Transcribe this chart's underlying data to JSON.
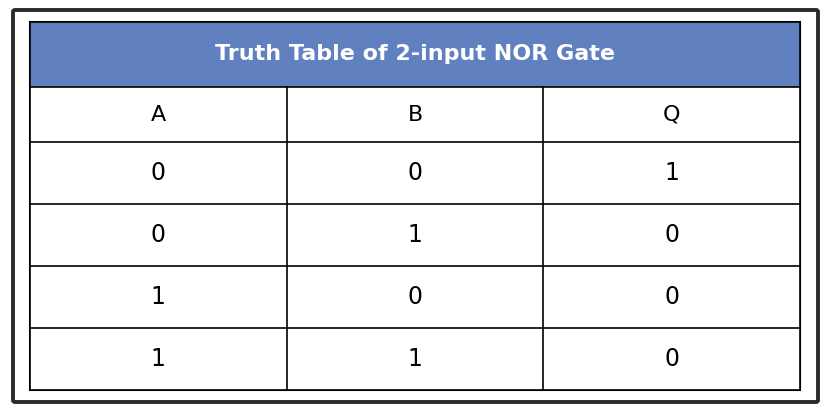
{
  "title": "Truth Table of 2-input NOR Gate",
  "header": [
    "A",
    "B",
    "Q"
  ],
  "rows": [
    [
      "0",
      "0",
      "1"
    ],
    [
      "0",
      "1",
      "0"
    ],
    [
      "1",
      "0",
      "0"
    ],
    [
      "1",
      "1",
      "0"
    ]
  ],
  "header_bg_color": "#6080C0",
  "header_text_color": "#FFFFFF",
  "cell_bg_color": "#FFFFFF",
  "cell_text_color": "#000000",
  "inner_border_color": "#000000",
  "outer_border_color": "#2A2A2A",
  "title_fontsize": 16,
  "header_fontsize": 16,
  "cell_fontsize": 17,
  "fig_bg_color": "#FFFFFF"
}
